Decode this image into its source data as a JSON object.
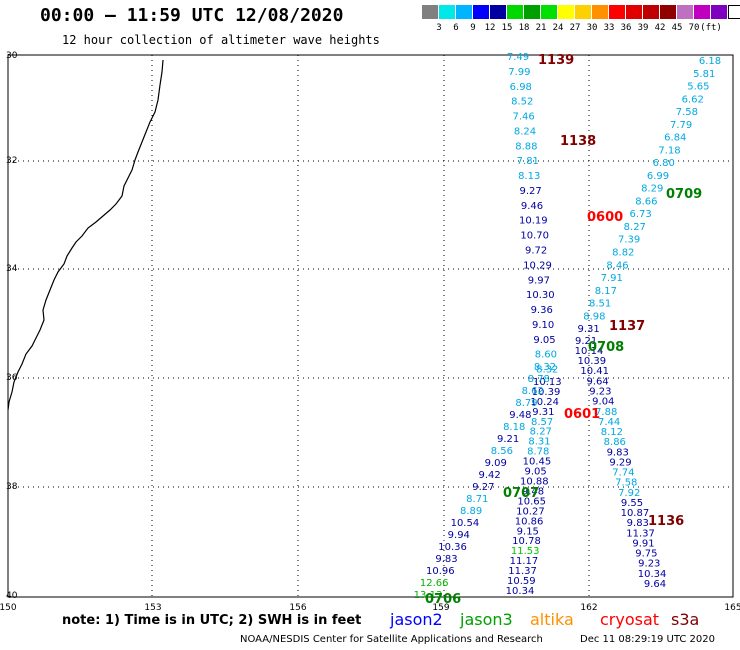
{
  "title": "00:00 – 11:59 UTC 12/08/2020",
  "subtitle": "12 hour collection of altimeter wave heights",
  "scale": {
    "colors": [
      "#808080",
      "#00e8e8",
      "#00b4ff",
      "#0000ff",
      "#0000a0",
      "#00d800",
      "#00a000",
      "#00e000",
      "#ffff00",
      "#ffd000",
      "#ff9000",
      "#ff0000",
      "#e00000",
      "#c00000",
      "#900000",
      "#c070c0",
      "#c000c0",
      "#8000c0",
      "#ffffff"
    ],
    "labels": [
      "3",
      "6",
      "9",
      "12",
      "15",
      "18",
      "21",
      "24",
      "27",
      "30",
      "33",
      "36",
      "39",
      "42",
      "45",
      "70",
      "(ft)"
    ]
  },
  "axes": {
    "lon_labels": [
      "150",
      "153",
      "156",
      "159",
      "162",
      "165"
    ],
    "lat_labels": [
      "30",
      "32",
      "34",
      "36",
      "38",
      "40"
    ]
  },
  "tracks": [
    {
      "name": "track-jason3-0709",
      "label": "0709",
      "color": "#00a000",
      "values": [
        "6.18",
        "5.81",
        "5.65",
        "6.62",
        "7.58",
        "7.79",
        "6.84",
        "7.18",
        "6.80",
        "6.99",
        "8.29",
        "8.66",
        "6.73",
        "8.27",
        "7.39",
        "8.82",
        "8.46",
        "7.91",
        "8.17",
        "8.51",
        "8.98",
        "9.31",
        "9.21",
        "10.14",
        "10.39",
        "10.41",
        "9.64",
        "9.23",
        "9.04",
        "7.88",
        "7.44",
        "8.12",
        "8.86",
        "9.83",
        "9.29",
        "7.74",
        "7.58",
        "7.92",
        "9.55",
        "10.87",
        "9.83",
        "11.37",
        "9.91",
        "9.75",
        "9.23",
        "10.34",
        "9.64"
      ]
    },
    {
      "name": "track-cryosat-0601",
      "label": "0601",
      "color": "#ff0000",
      "values": [
        "7.49",
        "7.99",
        "6.98",
        "8.52",
        "7.46",
        "8.24",
        "8.88",
        "7.81",
        "8.13",
        "9.27",
        "9.46",
        "10.19",
        "10.70",
        "9.72",
        "10.29",
        "9.97",
        "10.30",
        "9.36",
        "9.10",
        "9.05",
        "8.60",
        "8.32",
        "10.13",
        "10.39",
        "10.24",
        "9.31",
        "8.57",
        "8.27",
        "8.31",
        "8.78",
        "10.45",
        "9.05",
        "10.88",
        "9.48",
        "10.65",
        "10.27",
        "10.86",
        "9.15",
        "10.78",
        "11.53",
        "11.17",
        "11.37",
        "10.59",
        "10.34"
      ]
    },
    {
      "name": "track-altika-0706",
      "label": "0706",
      "color": "#ff9000",
      "values": [
        "8.32",
        "8.78",
        "8.62",
        "8.79",
        "9.48",
        "8.18",
        "9.21",
        "8.56",
        "9.09",
        "9.42",
        "9.27",
        "8.71",
        "8.89",
        "10.54",
        "9.94",
        "10.36",
        "9.83",
        "10.96",
        "12.66",
        "13.13"
      ]
    }
  ],
  "pass_labels": [
    {
      "text": "1139",
      "color": "#800000"
    },
    {
      "text": "1138",
      "color": "#800000"
    },
    {
      "text": "0600",
      "color": "#ff0000"
    },
    {
      "text": "0709",
      "color": "#008000"
    },
    {
      "text": "1137",
      "color": "#800000"
    },
    {
      "text": "0708",
      "color": "#008000"
    },
    {
      "text": "0601",
      "color": "#ff0000"
    },
    {
      "text": "0707",
      "color": "#008000"
    },
    {
      "text": "1136",
      "color": "#800000"
    },
    {
      "text": "0706",
      "color": "#008000"
    }
  ],
  "note": "note: 1) Time is in UTC; 2) SWH is in feet",
  "legend": [
    {
      "text": "jason2",
      "color": "#0000ff"
    },
    {
      "text": "jason3",
      "color": "#00a000"
    },
    {
      "text": "altika",
      "color": "#ff9000"
    },
    {
      "text": "cryosat",
      "color": "#ff0000"
    },
    {
      "text": "s3a",
      "color": "#800000"
    }
  ],
  "footer_left": "NOAA/NESDIS Center for Satellite Applications and Research",
  "footer_right": "Dec 11 08:29:19 UTC 2020"
}
